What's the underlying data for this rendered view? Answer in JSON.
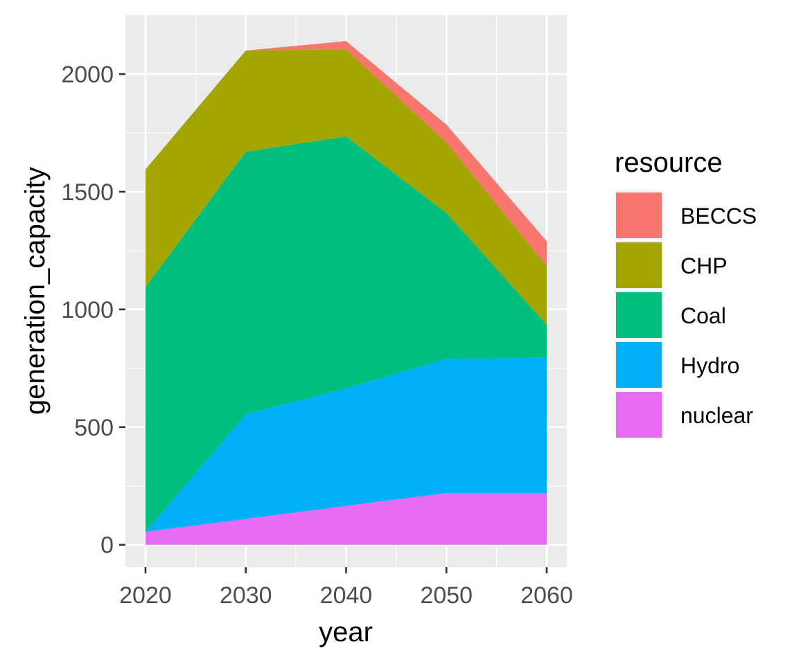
{
  "chart_data": {
    "type": "area",
    "stacked": true,
    "title": "",
    "xlabel": "year",
    "ylabel": "generation_capacity",
    "x": [
      2020,
      2030,
      2040,
      2050,
      2060
    ],
    "xlim": [
      2018,
      2062
    ],
    "ylim": [
      -95,
      2250
    ],
    "xticks": [
      2020,
      2030,
      2040,
      2050,
      2060
    ],
    "yticks": [
      0,
      500,
      1000,
      1500,
      2000
    ],
    "xtick_labels": [
      "2020",
      "2030",
      "2040",
      "2050",
      "2060"
    ],
    "ytick_labels": [
      "0",
      "500",
      "1000",
      "1500",
      "2000"
    ],
    "grid": true,
    "legend": {
      "title": "resource",
      "position": "right"
    },
    "series": [
      {
        "name": "nuclear",
        "color": "#E76BF3",
        "values": [
          55,
          110,
          165,
          220,
          220
        ]
      },
      {
        "name": "Hydro",
        "color": "#00B0F6",
        "values": [
          0,
          445,
          500,
          570,
          575
        ]
      },
      {
        "name": "Coal",
        "color": "#00BF7D",
        "values": [
          1040,
          1115,
          1070,
          620,
          140
        ]
      },
      {
        "name": "CHP",
        "color": "#A3A500",
        "values": [
          500,
          430,
          370,
          300,
          250
        ]
      },
      {
        "name": "BECCS",
        "color": "#F8766D",
        "values": [
          0,
          0,
          35,
          75,
          105
        ]
      }
    ],
    "legend_order": [
      "BECCS",
      "CHP",
      "Coal",
      "Hydro",
      "nuclear"
    ]
  }
}
